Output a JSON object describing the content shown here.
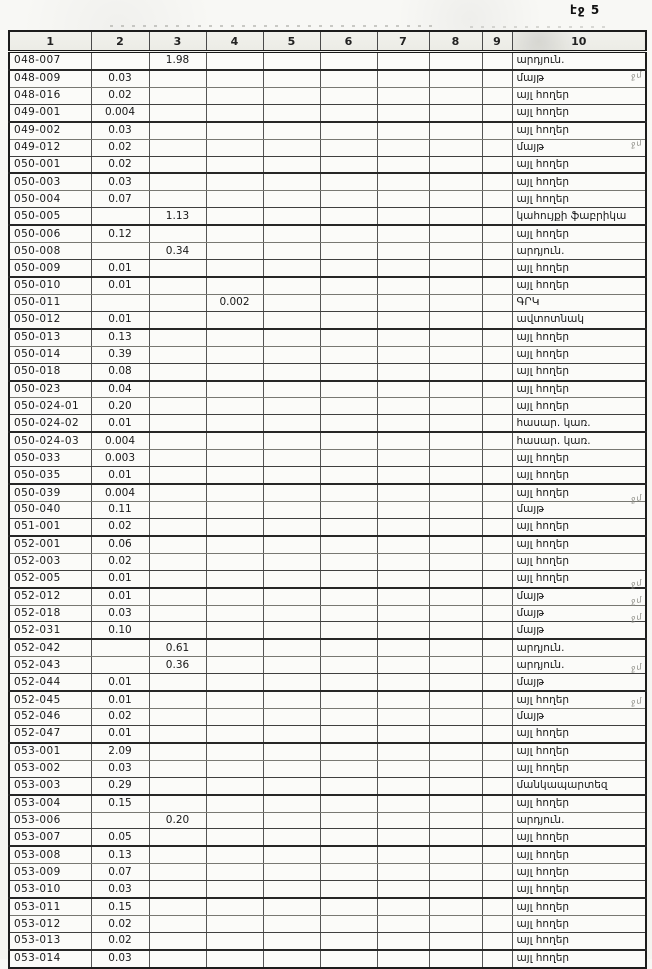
{
  "page": {
    "label": "էջ 5"
  },
  "table": {
    "headers": [
      "1",
      "2",
      "3",
      "4",
      "5",
      "6",
      "7",
      "8",
      "9",
      "10"
    ],
    "mark_label": "ջմ",
    "rows": [
      {
        "code": "048-007",
        "c2": "",
        "c3": "1.98",
        "c4": "",
        "use": "արդյուն.",
        "mark": false
      },
      {
        "code": "048-009",
        "c2": "0.03",
        "c3": "",
        "c4": "",
        "use": "մայթ",
        "mark": true
      },
      {
        "code": "048-016",
        "c2": "0.02",
        "c3": "",
        "c4": "",
        "use": "այլ հողեր",
        "mark": false
      },
      {
        "code": "049-001",
        "c2": "0.004",
        "c3": "",
        "c4": "",
        "use": "այլ հողեր",
        "mark": false
      },
      {
        "code": "049-002",
        "c2": "0.03",
        "c3": "",
        "c4": "",
        "use": "այլ հողեր",
        "mark": false
      },
      {
        "code": "049-012",
        "c2": "0.02",
        "c3": "",
        "c4": "",
        "use": "մայթ",
        "mark": true
      },
      {
        "code": "050-001",
        "c2": "0.02",
        "c3": "",
        "c4": "",
        "use": "այլ հողեր",
        "mark": false
      },
      {
        "code": "050-003",
        "c2": "0.03",
        "c3": "",
        "c4": "",
        "use": "այլ հողեր",
        "mark": false
      },
      {
        "code": "050-004",
        "c2": "0.07",
        "c3": "",
        "c4": "",
        "use": "այլ հողեր",
        "mark": false
      },
      {
        "code": "050-005",
        "c2": "",
        "c3": "1.13",
        "c4": "",
        "use": "կահույքի ֆաբրիկա",
        "mark": false
      },
      {
        "code": "050-006",
        "c2": "0.12",
        "c3": "",
        "c4": "",
        "use": "այլ հողեր",
        "mark": false
      },
      {
        "code": "050-008",
        "c2": "",
        "c3": "0.34",
        "c4": "",
        "use": "արդյուն.",
        "mark": false
      },
      {
        "code": "050-009",
        "c2": "0.01",
        "c3": "",
        "c4": "",
        "use": "այլ հողեր",
        "mark": false
      },
      {
        "code": "050-010",
        "c2": "0.01",
        "c3": "",
        "c4": "",
        "use": "այլ հողեր",
        "mark": false
      },
      {
        "code": "050-011",
        "c2": "",
        "c3": "",
        "c4": "0.002",
        "use": "ԳՐԿ",
        "mark": false
      },
      {
        "code": "050-012",
        "c2": "0.01",
        "c3": "",
        "c4": "",
        "use": "ավտոտնակ",
        "mark": false
      },
      {
        "code": "050-013",
        "c2": "0.13",
        "c3": "",
        "c4": "",
        "use": "այլ հողեր",
        "mark": false
      },
      {
        "code": "050-014",
        "c2": "0.39",
        "c3": "",
        "c4": "",
        "use": "այլ հողեր",
        "mark": false
      },
      {
        "code": "050-018",
        "c2": "0.08",
        "c3": "",
        "c4": "",
        "use": "այլ հողեր",
        "mark": false
      },
      {
        "code": "050-023",
        "c2": "0.04",
        "c3": "",
        "c4": "",
        "use": "այլ հողեր",
        "mark": false
      },
      {
        "code": "050-024-01",
        "c2": "0.20",
        "c3": "",
        "c4": "",
        "use": "այլ հողեր",
        "mark": false
      },
      {
        "code": "050-024-02",
        "c2": "0.01",
        "c3": "",
        "c4": "",
        "use": "հասար. կառ.",
        "mark": false
      },
      {
        "code": "050-024-03",
        "c2": "0.004",
        "c3": "",
        "c4": "",
        "use": "հասար. կառ.",
        "mark": false
      },
      {
        "code": "050-033",
        "c2": "0.003",
        "c3": "",
        "c4": "",
        "use": "այլ հողեր",
        "mark": false
      },
      {
        "code": "050-035",
        "c2": "0.01",
        "c3": "",
        "c4": "",
        "use": "այլ հողեր",
        "mark": false
      },
      {
        "code": "050-039",
        "c2": "0.004",
        "c3": "",
        "c4": "",
        "use": "այլ հողեր",
        "mark": false
      },
      {
        "code": "050-040",
        "c2": "0.11",
        "c3": "",
        "c4": "",
        "use": "մայթ",
        "mark": true
      },
      {
        "code": "051-001",
        "c2": "0.02",
        "c3": "",
        "c4": "",
        "use": "այլ հողեր",
        "mark": false
      },
      {
        "code": "052-001",
        "c2": "0.06",
        "c3": "",
        "c4": "",
        "use": "այլ հողեր",
        "mark": false
      },
      {
        "code": "052-003",
        "c2": "0.02",
        "c3": "",
        "c4": "",
        "use": "այլ հողեր",
        "mark": false
      },
      {
        "code": "052-005",
        "c2": "0.01",
        "c3": "",
        "c4": "",
        "use": "այլ հողեր",
        "mark": false
      },
      {
        "code": "052-012",
        "c2": "0.01",
        "c3": "",
        "c4": "",
        "use": "մայթ",
        "mark": true
      },
      {
        "code": "052-018",
        "c2": "0.03",
        "c3": "",
        "c4": "",
        "use": "մայթ",
        "mark": true
      },
      {
        "code": "052-031",
        "c2": "0.10",
        "c3": "",
        "c4": "",
        "use": "մայթ",
        "mark": true
      },
      {
        "code": "052-042",
        "c2": "",
        "c3": "0.61",
        "c4": "",
        "use": "արդյուն.",
        "mark": false
      },
      {
        "code": "052-043",
        "c2": "",
        "c3": "0.36",
        "c4": "",
        "use": "արդյուն.",
        "mark": false
      },
      {
        "code": "052-044",
        "c2": "0.01",
        "c3": "",
        "c4": "",
        "use": "մայթ",
        "mark": true
      },
      {
        "code": "052-045",
        "c2": "0.01",
        "c3": "",
        "c4": "",
        "use": "այլ հողեր",
        "mark": false
      },
      {
        "code": "052-046",
        "c2": "0.02",
        "c3": "",
        "c4": "",
        "use": "մայթ",
        "mark": true
      },
      {
        "code": "052-047",
        "c2": "0.01",
        "c3": "",
        "c4": "",
        "use": "այլ հողեր",
        "mark": false
      },
      {
        "code": "053-001",
        "c2": "2.09",
        "c3": "",
        "c4": "",
        "use": "այլ հողեր",
        "mark": false
      },
      {
        "code": "053-002",
        "c2": "0.03",
        "c3": "",
        "c4": "",
        "use": "այլ հողեր",
        "mark": false
      },
      {
        "code": "053-003",
        "c2": "0.29",
        "c3": "",
        "c4": "",
        "use": "մանկապարտեզ",
        "mark": false
      },
      {
        "code": "053-004",
        "c2": "0.15",
        "c3": "",
        "c4": "",
        "use": "այլ հողեր",
        "mark": false
      },
      {
        "code": "053-006",
        "c2": "",
        "c3": "0.20",
        "c4": "",
        "use": "արդյուն.",
        "mark": false
      },
      {
        "code": "053-007",
        "c2": "0.05",
        "c3": "",
        "c4": "",
        "use": "այլ հողեր",
        "mark": false
      },
      {
        "code": "053-008",
        "c2": "0.13",
        "c3": "",
        "c4": "",
        "use": "այլ հողեր",
        "mark": false
      },
      {
        "code": "053-009",
        "c2": "0.07",
        "c3": "",
        "c4": "",
        "use": "այլ հողեր",
        "mark": false
      },
      {
        "code": "053-010",
        "c2": "0.03",
        "c3": "",
        "c4": "",
        "use": "այլ հողեր",
        "mark": false
      },
      {
        "code": "053-011",
        "c2": "0.15",
        "c3": "",
        "c4": "",
        "use": "այլ հողեր",
        "mark": false
      },
      {
        "code": "053-012",
        "c2": "0.02",
        "c3": "",
        "c4": "",
        "use": "այլ հողեր",
        "mark": false
      },
      {
        "code": "053-013",
        "c2": "0.02",
        "c3": "",
        "c4": "",
        "use": "այլ հողեր",
        "mark": false
      },
      {
        "code": "053-014",
        "c2": "0.03",
        "c3": "",
        "c4": "",
        "use": "այլ հողեր",
        "mark": false
      }
    ]
  }
}
